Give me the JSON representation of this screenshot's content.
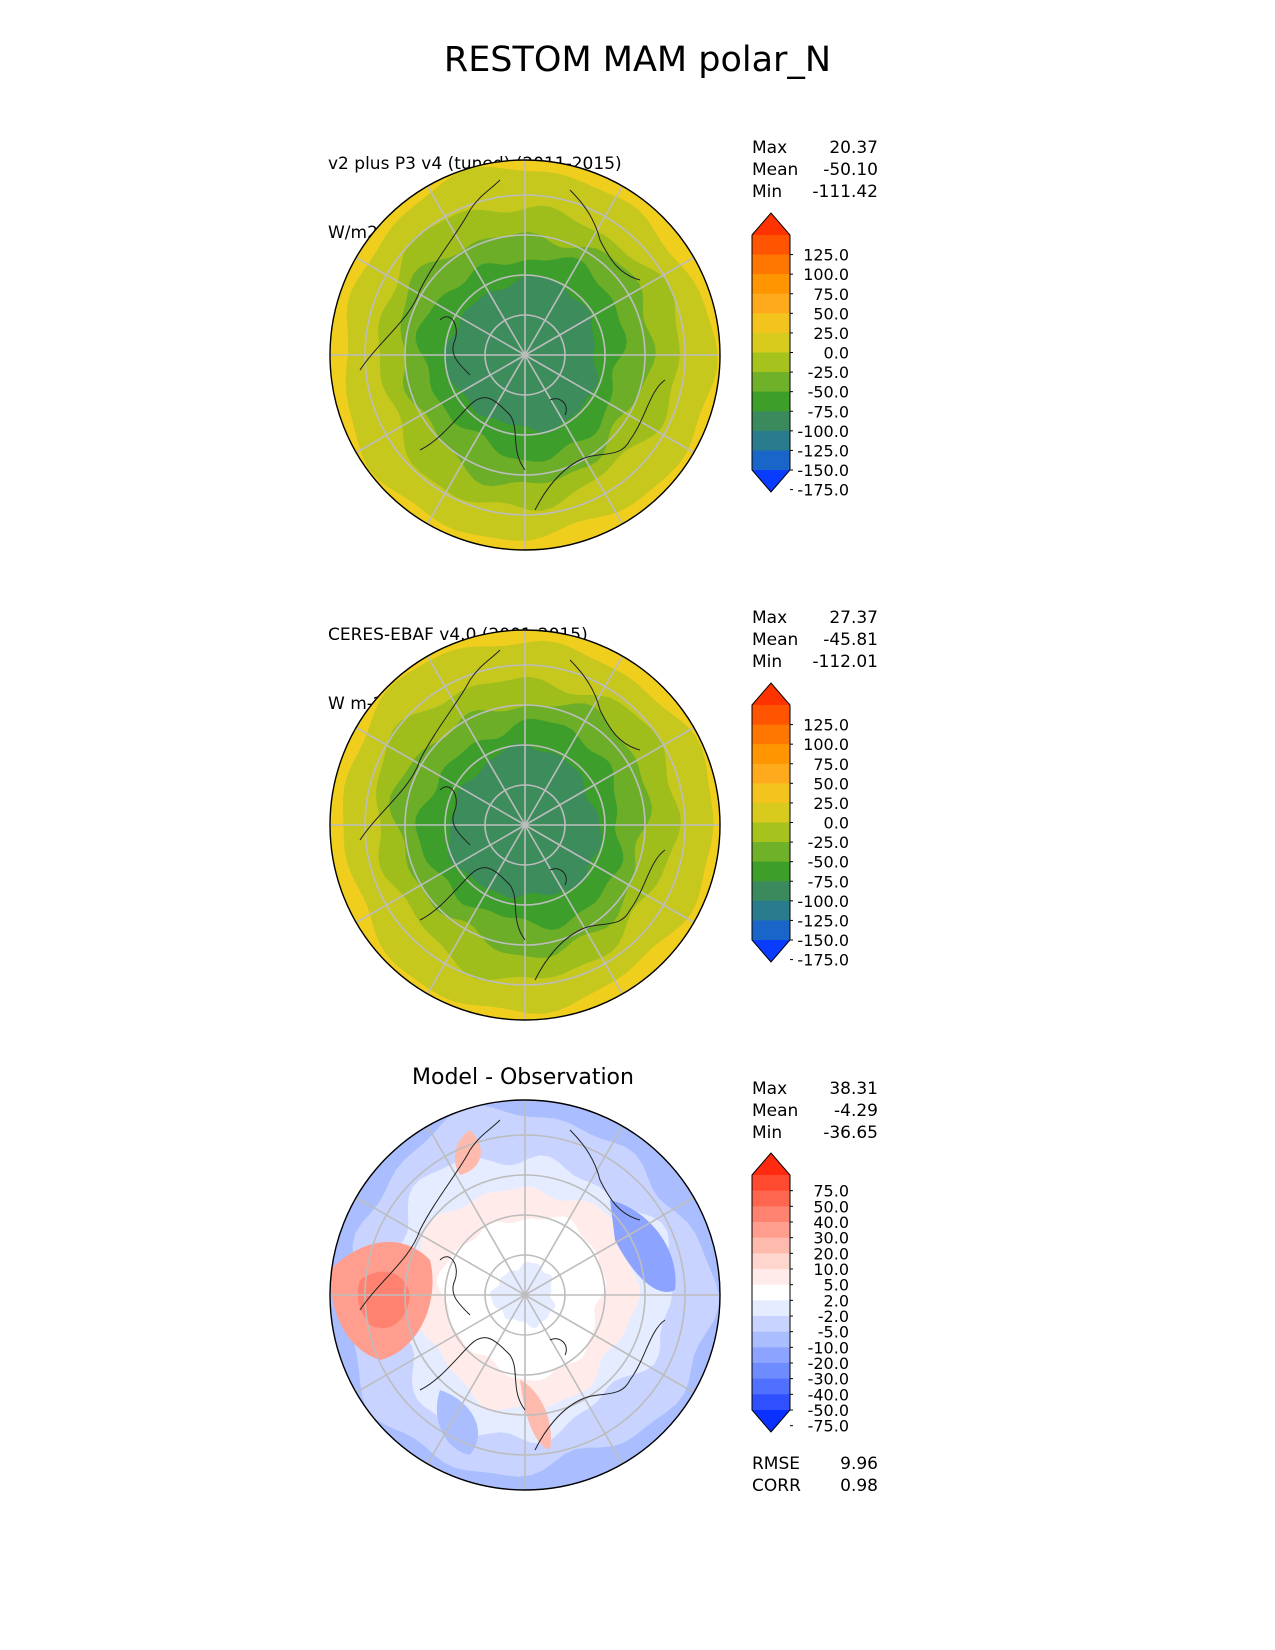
{
  "figure_title": "RESTOM MAM polar_N",
  "colors": {
    "sea_low": "#3c8c5c",
    "ring_green_dark": "#3e9e2c",
    "ring_green": "#6cae28",
    "ring_yellowgreen": "#9fbe1c",
    "ring_olive": "#c6c81e",
    "ring_yellow": "#f0ce1e",
    "grid": "#bdbdbd",
    "coast": "#222222"
  },
  "chart_data": [
    {
      "type": "heatmap",
      "projection": "north polar stereographic",
      "title_line1": "v2 plus P3 v4 (tuned) (2011-2015)",
      "title_line2": "W/m2",
      "stats": {
        "Max": "20.37",
        "Mean": "-50.10",
        "Min": "-111.42"
      },
      "colorbar": {
        "levels": [
          "125.0",
          "100.0",
          "75.0",
          "50.0",
          "25.0",
          "0.0",
          "-25.0",
          "-50.0",
          "-75.0",
          "-100.0",
          "-125.0",
          "-150.0",
          "-175.0"
        ],
        "colors": [
          "#ff3300",
          "#ff5500",
          "#ff7700",
          "#ff9500",
          "#ffaa1c",
          "#f4c41e",
          "#d8cb1e",
          "#a6c21c",
          "#6fb128",
          "#3d9f2a",
          "#3a8a5e",
          "#2a7c8c",
          "#1966c8",
          "#0a3cff"
        ]
      },
      "field": {
        "radial_profile_levels": [
          "-100.0",
          "-75.0",
          "-50.0",
          "-25.0",
          "0.0"
        ],
        "description_values_W_m2": [
          -100,
          -75,
          -50,
          -25,
          0
        ]
      }
    },
    {
      "type": "heatmap",
      "projection": "north polar stereographic",
      "title_line1": "CERES-EBAF v4.0 (2001-2015)",
      "title_line2": "W m-2",
      "stats": {
        "Max": "27.37",
        "Mean": "-45.81",
        "Min": "-112.01"
      },
      "colorbar": {
        "levels": [
          "125.0",
          "100.0",
          "75.0",
          "50.0",
          "25.0",
          "0.0",
          "-25.0",
          "-50.0",
          "-75.0",
          "-100.0",
          "-125.0",
          "-150.0",
          "-175.0"
        ],
        "colors": [
          "#ff3300",
          "#ff5500",
          "#ff7700",
          "#ff9500",
          "#ffaa1c",
          "#f4c41e",
          "#d8cb1e",
          "#a6c21c",
          "#6fb128",
          "#3d9f2a",
          "#3a8a5e",
          "#2a7c8c",
          "#1966c8",
          "#0a3cff"
        ]
      }
    },
    {
      "type": "heatmap",
      "projection": "north polar stereographic",
      "title": "Model - Observation",
      "stats": {
        "Max": "38.31",
        "Mean": "-4.29",
        "Min": "-36.65"
      },
      "extra_stats": {
        "RMSE": "9.96",
        "CORR": "0.98"
      },
      "colorbar": {
        "levels": [
          "75.0",
          "50.0",
          "40.0",
          "30.0",
          "20.0",
          "10.0",
          "5.0",
          "2.0",
          "-2.0",
          "-5.0",
          "-10.0",
          "-20.0",
          "-30.0",
          "-40.0",
          "-50.0",
          "-75.0"
        ],
        "colors": [
          "#ff2a10",
          "#ff4a30",
          "#ff6650",
          "#ff8270",
          "#ff9e8e",
          "#ffbaae",
          "#ffd6ce",
          "#ffecea",
          "#ffffff",
          "#e6ecff",
          "#c8d4ff",
          "#aabeff",
          "#8ca4ff",
          "#6e8cff",
          "#5070ff",
          "#3050ff",
          "#0a30ff"
        ]
      }
    }
  ]
}
